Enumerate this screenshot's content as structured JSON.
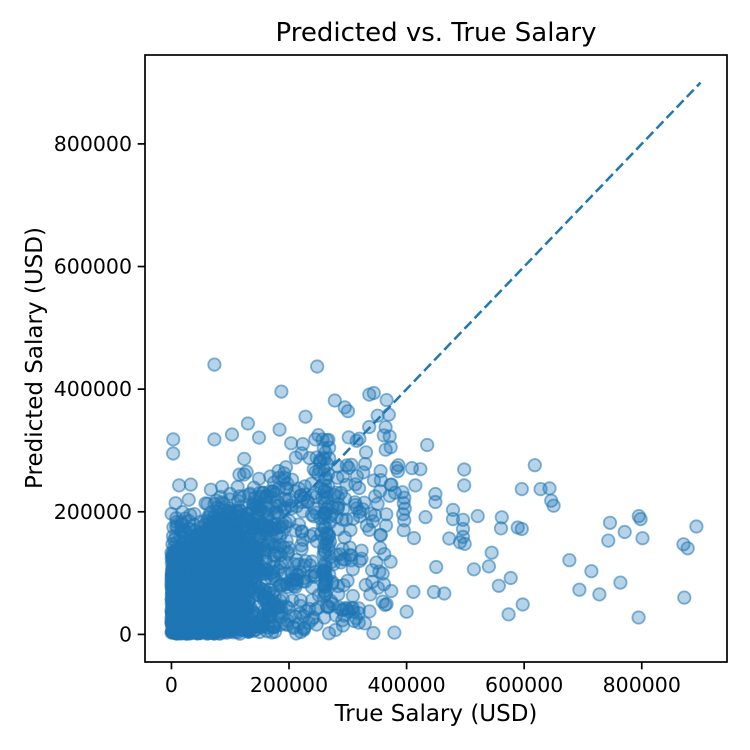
{
  "chart_data": {
    "type": "scatter",
    "title": "Predicted vs. True Salary",
    "xlabel": "True Salary (USD)",
    "ylabel": "Predicted Salary (USD)",
    "xlim": [
      -45000,
      945000
    ],
    "ylim": [
      -45000,
      945000
    ],
    "grid": false,
    "legend": null,
    "xticks": [
      {
        "value": 0,
        "label": "0"
      },
      {
        "value": 200000,
        "label": "200000"
      },
      {
        "value": 400000,
        "label": "400000"
      },
      {
        "value": 600000,
        "label": "600000"
      },
      {
        "value": 800000,
        "label": "800000"
      }
    ],
    "yticks": [
      {
        "value": 0,
        "label": "0"
      },
      {
        "value": 200000,
        "label": "200000"
      },
      {
        "value": 400000,
        "label": "400000"
      },
      {
        "value": 600000,
        "label": "600000"
      },
      {
        "value": 800000,
        "label": "800000"
      }
    ],
    "identity_line": {
      "x1": 0,
      "y1": 0,
      "x2": 900000,
      "y2": 900000,
      "color": "#1f77b4",
      "dash": [
        10,
        4.6
      ],
      "width": 2.5,
      "style": "dashed"
    },
    "marker": {
      "shape": "circle",
      "radius": 6.2,
      "color": "#1f77b4",
      "fill_opacity": 0.32,
      "stroke_opacity": 0.55,
      "stroke_width": 1.8
    },
    "spine_color": "#000000",
    "outlier_points": [
      [
        3000,
        318000
      ],
      [
        3000,
        295000
      ],
      [
        7000,
        214000
      ],
      [
        13000,
        243000
      ],
      [
        73000,
        440000
      ],
      [
        73000,
        318000
      ],
      [
        103000,
        326000
      ],
      [
        130000,
        344000
      ],
      [
        149000,
        321000
      ],
      [
        184000,
        334000
      ],
      [
        187000,
        396000
      ],
      [
        228000,
        355000
      ],
      [
        248000,
        437000
      ],
      [
        250000,
        325000
      ],
      [
        292000,
        258000
      ],
      [
        331000,
        297000
      ],
      [
        386000,
        276000
      ],
      [
        415000,
        243000
      ],
      [
        435000,
        309000
      ],
      [
        373000,
        244000
      ],
      [
        371000,
        226000
      ],
      [
        393000,
        232000
      ],
      [
        396000,
        223000
      ],
      [
        395000,
        214000
      ],
      [
        397000,
        205000
      ],
      [
        394000,
        196000
      ],
      [
        396000,
        186000
      ],
      [
        395000,
        170000
      ],
      [
        449000,
        229000
      ],
      [
        449000,
        216000
      ],
      [
        479000,
        203000
      ],
      [
        479000,
        188000
      ],
      [
        496000,
        187000
      ],
      [
        496000,
        172000
      ],
      [
        496000,
        159000
      ],
      [
        498000,
        269000
      ],
      [
        498000,
        243000
      ],
      [
        521000,
        193000
      ],
      [
        540000,
        111000
      ],
      [
        562000,
        191000
      ],
      [
        577000,
        92000
      ],
      [
        596000,
        237000
      ],
      [
        596000,
        172000
      ],
      [
        618000,
        276000
      ],
      [
        628000,
        237000
      ],
      [
        650000,
        210000
      ],
      [
        677000,
        121000
      ],
      [
        694000,
        73000
      ],
      [
        746000,
        182000
      ],
      [
        795000,
        193000
      ],
      [
        798000,
        188000
      ],
      [
        871000,
        147000
      ],
      [
        893000,
        176000
      ],
      [
        400000,
        37000
      ]
    ],
    "generated_cluster": {
      "seed": 42,
      "core": {
        "n": 2600,
        "near_zero_frac": 0.17,
        "near_zero_sigma": 14000,
        "log_mu": 11.25,
        "log_sigma": 0.8,
        "x_fold": 380000,
        "fold_min": 255000,
        "fold_span": 130000,
        "top_intercept": 115000,
        "top_slope": 0.68,
        "fill_pow": 1.15,
        "jitter": 9000,
        "halo_frac": 0.07,
        "halo_scale": 32000,
        "y_min": 1200
      },
      "tail": {
        "n": 110,
        "x_min": 260000,
        "x_span": 660000,
        "x_pow": 4,
        "y_base": 45000,
        "y_span": 225000,
        "y_noise": 20000,
        "y_min": 18000,
        "y_max": 315000
      }
    }
  }
}
